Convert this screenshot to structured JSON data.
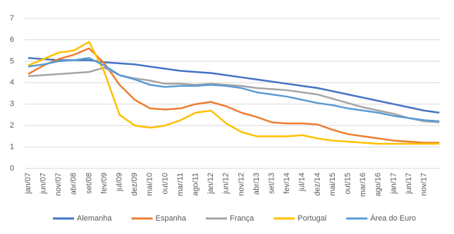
{
  "chart_data": {
    "type": "line",
    "categories": [
      "jan/07",
      "jun/07",
      "nov/07",
      "abr/08",
      "set/08",
      "fev/09",
      "jul/09",
      "dez/09",
      "mai/10",
      "out/10",
      "mar/11",
      "ago/11",
      "jan/12",
      "jun/12",
      "nov/12",
      "abr/13",
      "set/13",
      "fev/14",
      "jul/14",
      "dez/14",
      "mai/15",
      "out/15",
      "mar/16",
      "ago/16",
      "jan/17",
      "jun/17",
      "nov/17",
      null
    ],
    "series": [
      {
        "name": "Alemanha",
        "color": "#4472c4",
        "values": [
          5.15,
          5.1,
          5.05,
          5.05,
          5.05,
          4.95,
          4.9,
          4.85,
          4.75,
          4.65,
          4.55,
          4.5,
          4.45,
          4.35,
          4.25,
          4.15,
          4.05,
          3.95,
          3.85,
          3.75,
          3.6,
          3.45,
          3.3,
          3.15,
          3.0,
          2.85,
          2.7,
          2.6
        ]
      },
      {
        "name": "Espanha",
        "color": "#ed7d31",
        "values": [
          4.4,
          4.8,
          5.1,
          5.3,
          5.6,
          4.9,
          3.9,
          3.2,
          2.8,
          2.75,
          2.8,
          3.0,
          3.1,
          2.9,
          2.6,
          2.4,
          2.15,
          2.1,
          2.1,
          2.05,
          1.8,
          1.6,
          1.5,
          1.4,
          1.3,
          1.25,
          1.2,
          1.2
        ]
      },
      {
        "name": "França",
        "color": "#a5a5a5",
        "values": [
          4.3,
          4.35,
          4.4,
          4.45,
          4.5,
          4.7,
          4.35,
          4.2,
          4.1,
          3.95,
          3.95,
          3.9,
          3.95,
          3.9,
          3.85,
          3.75,
          3.7,
          3.65,
          3.55,
          3.45,
          3.25,
          3.05,
          2.85,
          2.7,
          2.55,
          2.35,
          2.2,
          2.15
        ]
      },
      {
        "name": "Portugal",
        "color": "#ffc000",
        "values": [
          4.8,
          5.1,
          5.4,
          5.5,
          5.9,
          4.5,
          2.5,
          2.0,
          1.9,
          2.0,
          2.25,
          2.6,
          2.7,
          2.1,
          1.7,
          1.5,
          1.5,
          1.5,
          1.55,
          1.4,
          1.3,
          1.25,
          1.2,
          1.15,
          1.15,
          1.15,
          1.15,
          1.15
        ]
      },
      {
        "name": "Área do Euro",
        "color": "#5b9bd5",
        "values": [
          4.75,
          4.85,
          5.0,
          5.05,
          5.15,
          4.8,
          4.35,
          4.15,
          3.9,
          3.8,
          3.85,
          3.85,
          3.9,
          3.85,
          3.75,
          3.55,
          3.45,
          3.35,
          3.2,
          3.05,
          2.95,
          2.8,
          2.7,
          2.6,
          2.45,
          2.35,
          2.25,
          2.2
        ]
      }
    ],
    "ylim": [
      0,
      7
    ],
    "yticks": [
      0,
      1,
      2,
      3,
      4,
      5,
      6,
      7
    ],
    "grid": true
  }
}
